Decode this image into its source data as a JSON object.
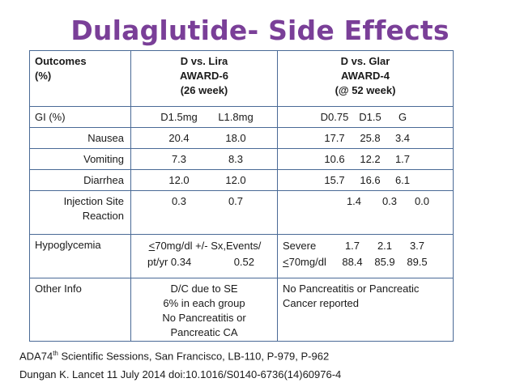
{
  "title": "Dulaglutide- Side Effects",
  "header": {
    "outcomes": "Outcomes",
    "pct": "(%)",
    "lira": [
      "D vs. Lira",
      "AWARD-6",
      "(26 week)"
    ],
    "glar": [
      "D vs. Glar",
      "AWARD-4",
      "(@ 52 week)"
    ]
  },
  "gi": {
    "label": "GI (%)",
    "lira_doses": [
      "D1.5mg",
      "L1.8mg"
    ],
    "glar_doses": [
      "D0.75",
      "D1.5",
      "G"
    ]
  },
  "rows": [
    {
      "label": "Nausea",
      "lira": [
        "20.4",
        "18.0"
      ],
      "glar": [
        "17.7",
        "25.8",
        "3.4"
      ]
    },
    {
      "label": "Vomiting",
      "lira": [
        "7.3",
        "8.3"
      ],
      "glar": [
        "10.6",
        "12.2",
        "1.7"
      ]
    },
    {
      "label": "Diarrhea",
      "lira": [
        "12.0",
        "12.0"
      ],
      "glar": [
        "15.7",
        "16.6",
        "6.1"
      ]
    }
  ],
  "injection": {
    "label1": "Injection Site",
    "label2": "Reaction",
    "lira": [
      "0.3",
      "0.7"
    ],
    "glar": [
      "1.4",
      "0.3",
      "0.0"
    ]
  },
  "hypo": {
    "label": "Hypoglycemia",
    "lira_line1_lt": "<",
    "lira_line1": "70mg/dl +/- Sx,Events/",
    "lira_line2a": "pt/yr 0.34",
    "lira_line2b": "0.52",
    "glar_severe": "Severe",
    "glar_severe_vals": [
      "1.7",
      "2.1",
      "3.7"
    ],
    "glar_lt": "<",
    "glar_lt_label": "70mg/dl",
    "glar_lt_vals": [
      "88.4",
      "85.9",
      "89.5"
    ]
  },
  "other": {
    "label": "Other Info",
    "lira": [
      "D/C due to SE",
      "6% in each group",
      "No Pancreatitis or",
      "Pancreatic CA"
    ],
    "glar": [
      "No Pancreatitis or Pancreatic",
      "Cancer reported"
    ]
  },
  "footer": {
    "line1_a": "ADA74",
    "line1_sup": "th",
    "line1_b": " Scientific Sessions, San Francisco, LB-110, P-979, P-962",
    "line2": "Dungan K.  Lancet 11 July 2014  doi:10.1016/S0140-6736(14)60976-4"
  }
}
